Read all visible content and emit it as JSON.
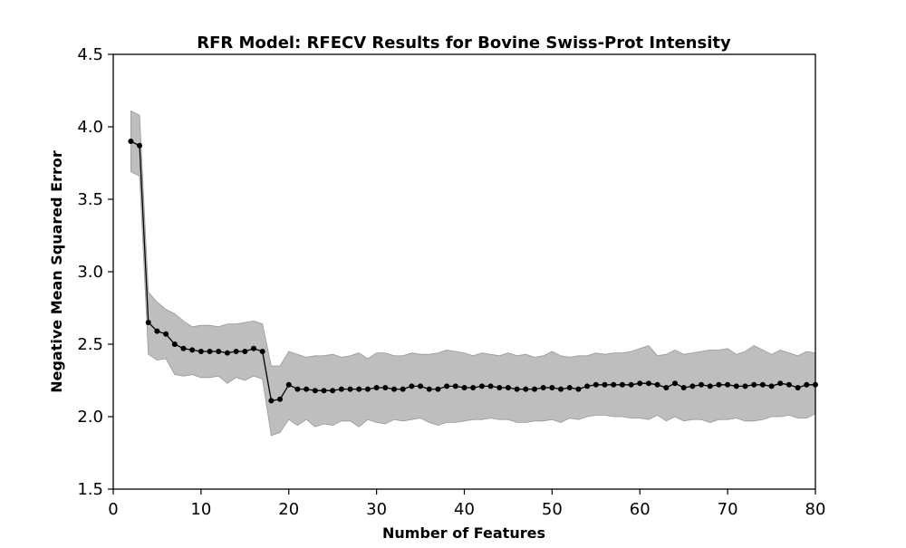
{
  "chart_data": {
    "type": "line",
    "title": "RFR Model: RFECV Results for Bovine Swiss-Prot Intensity",
    "xlabel": "Number of Features",
    "ylabel": "Negative Mean Squared Error",
    "xlim": [
      0,
      80
    ],
    "ylim": [
      1.5,
      4.5
    ],
    "xticks": [
      "0",
      "10",
      "20",
      "30",
      "40",
      "50",
      "60",
      "70",
      "80"
    ],
    "yticks": [
      "1.5",
      "2.0",
      "2.5",
      "3.0",
      "3.5",
      "4.0",
      "4.5"
    ],
    "grid": false,
    "colors": {
      "line": "#000000",
      "band": "#bebebe"
    },
    "x": [
      2,
      3,
      4,
      5,
      6,
      7,
      8,
      9,
      10,
      11,
      12,
      13,
      14,
      15,
      16,
      17,
      18,
      19,
      20,
      21,
      22,
      23,
      24,
      25,
      26,
      27,
      28,
      29,
      30,
      31,
      32,
      33,
      34,
      35,
      36,
      37,
      38,
      39,
      40,
      41,
      42,
      43,
      44,
      45,
      46,
      47,
      48,
      49,
      50,
      51,
      52,
      53,
      54,
      55,
      56,
      57,
      58,
      59,
      60,
      61,
      62,
      63,
      64,
      65,
      66,
      67,
      68,
      69,
      70,
      71,
      72,
      73,
      74,
      75,
      76,
      77,
      78,
      79,
      80
    ],
    "y": [
      3.9,
      3.87,
      2.65,
      2.59,
      2.57,
      2.5,
      2.47,
      2.46,
      2.45,
      2.45,
      2.45,
      2.44,
      2.45,
      2.45,
      2.47,
      2.45,
      2.11,
      2.12,
      2.22,
      2.19,
      2.19,
      2.18,
      2.18,
      2.18,
      2.19,
      2.19,
      2.19,
      2.19,
      2.2,
      2.2,
      2.19,
      2.19,
      2.21,
      2.21,
      2.19,
      2.19,
      2.21,
      2.21,
      2.2,
      2.2,
      2.21,
      2.21,
      2.2,
      2.2,
      2.19,
      2.19,
      2.19,
      2.2,
      2.2,
      2.19,
      2.2,
      2.19,
      2.21,
      2.22,
      2.22,
      2.22,
      2.22,
      2.22,
      2.23,
      2.23,
      2.22,
      2.2,
      2.23,
      2.2,
      2.21,
      2.22,
      2.21,
      2.22,
      2.22,
      2.21,
      2.21,
      2.22,
      2.22,
      2.21,
      2.23,
      2.22,
      2.2,
      2.22,
      2.22
    ],
    "upper": [
      4.11,
      4.08,
      2.86,
      2.79,
      2.74,
      2.71,
      2.66,
      2.62,
      2.63,
      2.63,
      2.62,
      2.64,
      2.64,
      2.65,
      2.66,
      2.64,
      2.35,
      2.35,
      2.45,
      2.43,
      2.41,
      2.42,
      2.42,
      2.43,
      2.41,
      2.42,
      2.44,
      2.4,
      2.44,
      2.44,
      2.42,
      2.42,
      2.44,
      2.43,
      2.43,
      2.44,
      2.46,
      2.45,
      2.44,
      2.42,
      2.44,
      2.43,
      2.42,
      2.44,
      2.42,
      2.43,
      2.41,
      2.42,
      2.45,
      2.42,
      2.41,
      2.42,
      2.42,
      2.44,
      2.43,
      2.44,
      2.44,
      2.45,
      2.47,
      2.49,
      2.42,
      2.43,
      2.46,
      2.43,
      2.44,
      2.45,
      2.46,
      2.46,
      2.47,
      2.43,
      2.45,
      2.49,
      2.46,
      2.43,
      2.46,
      2.44,
      2.42,
      2.45,
      2.44
    ],
    "lower": [
      3.69,
      3.66,
      2.43,
      2.39,
      2.4,
      2.29,
      2.28,
      2.29,
      2.27,
      2.27,
      2.28,
      2.23,
      2.27,
      2.25,
      2.28,
      2.26,
      1.87,
      1.89,
      1.98,
      1.94,
      1.98,
      1.93,
      1.95,
      1.94,
      1.97,
      1.97,
      1.93,
      1.98,
      1.96,
      1.95,
      1.98,
      1.97,
      1.98,
      1.99,
      1.96,
      1.94,
      1.96,
      1.96,
      1.97,
      1.98,
      1.98,
      1.99,
      1.98,
      1.98,
      1.96,
      1.96,
      1.97,
      1.97,
      1.98,
      1.96,
      1.99,
      1.98,
      2.0,
      2.01,
      2.01,
      2.0,
      2.0,
      1.99,
      1.99,
      1.98,
      2.01,
      1.97,
      2.0,
      1.97,
      1.98,
      1.98,
      1.96,
      1.98,
      1.98,
      1.99,
      1.97,
      1.97,
      1.98,
      2.0,
      2.0,
      2.01,
      1.99,
      1.99,
      2.02
    ]
  }
}
